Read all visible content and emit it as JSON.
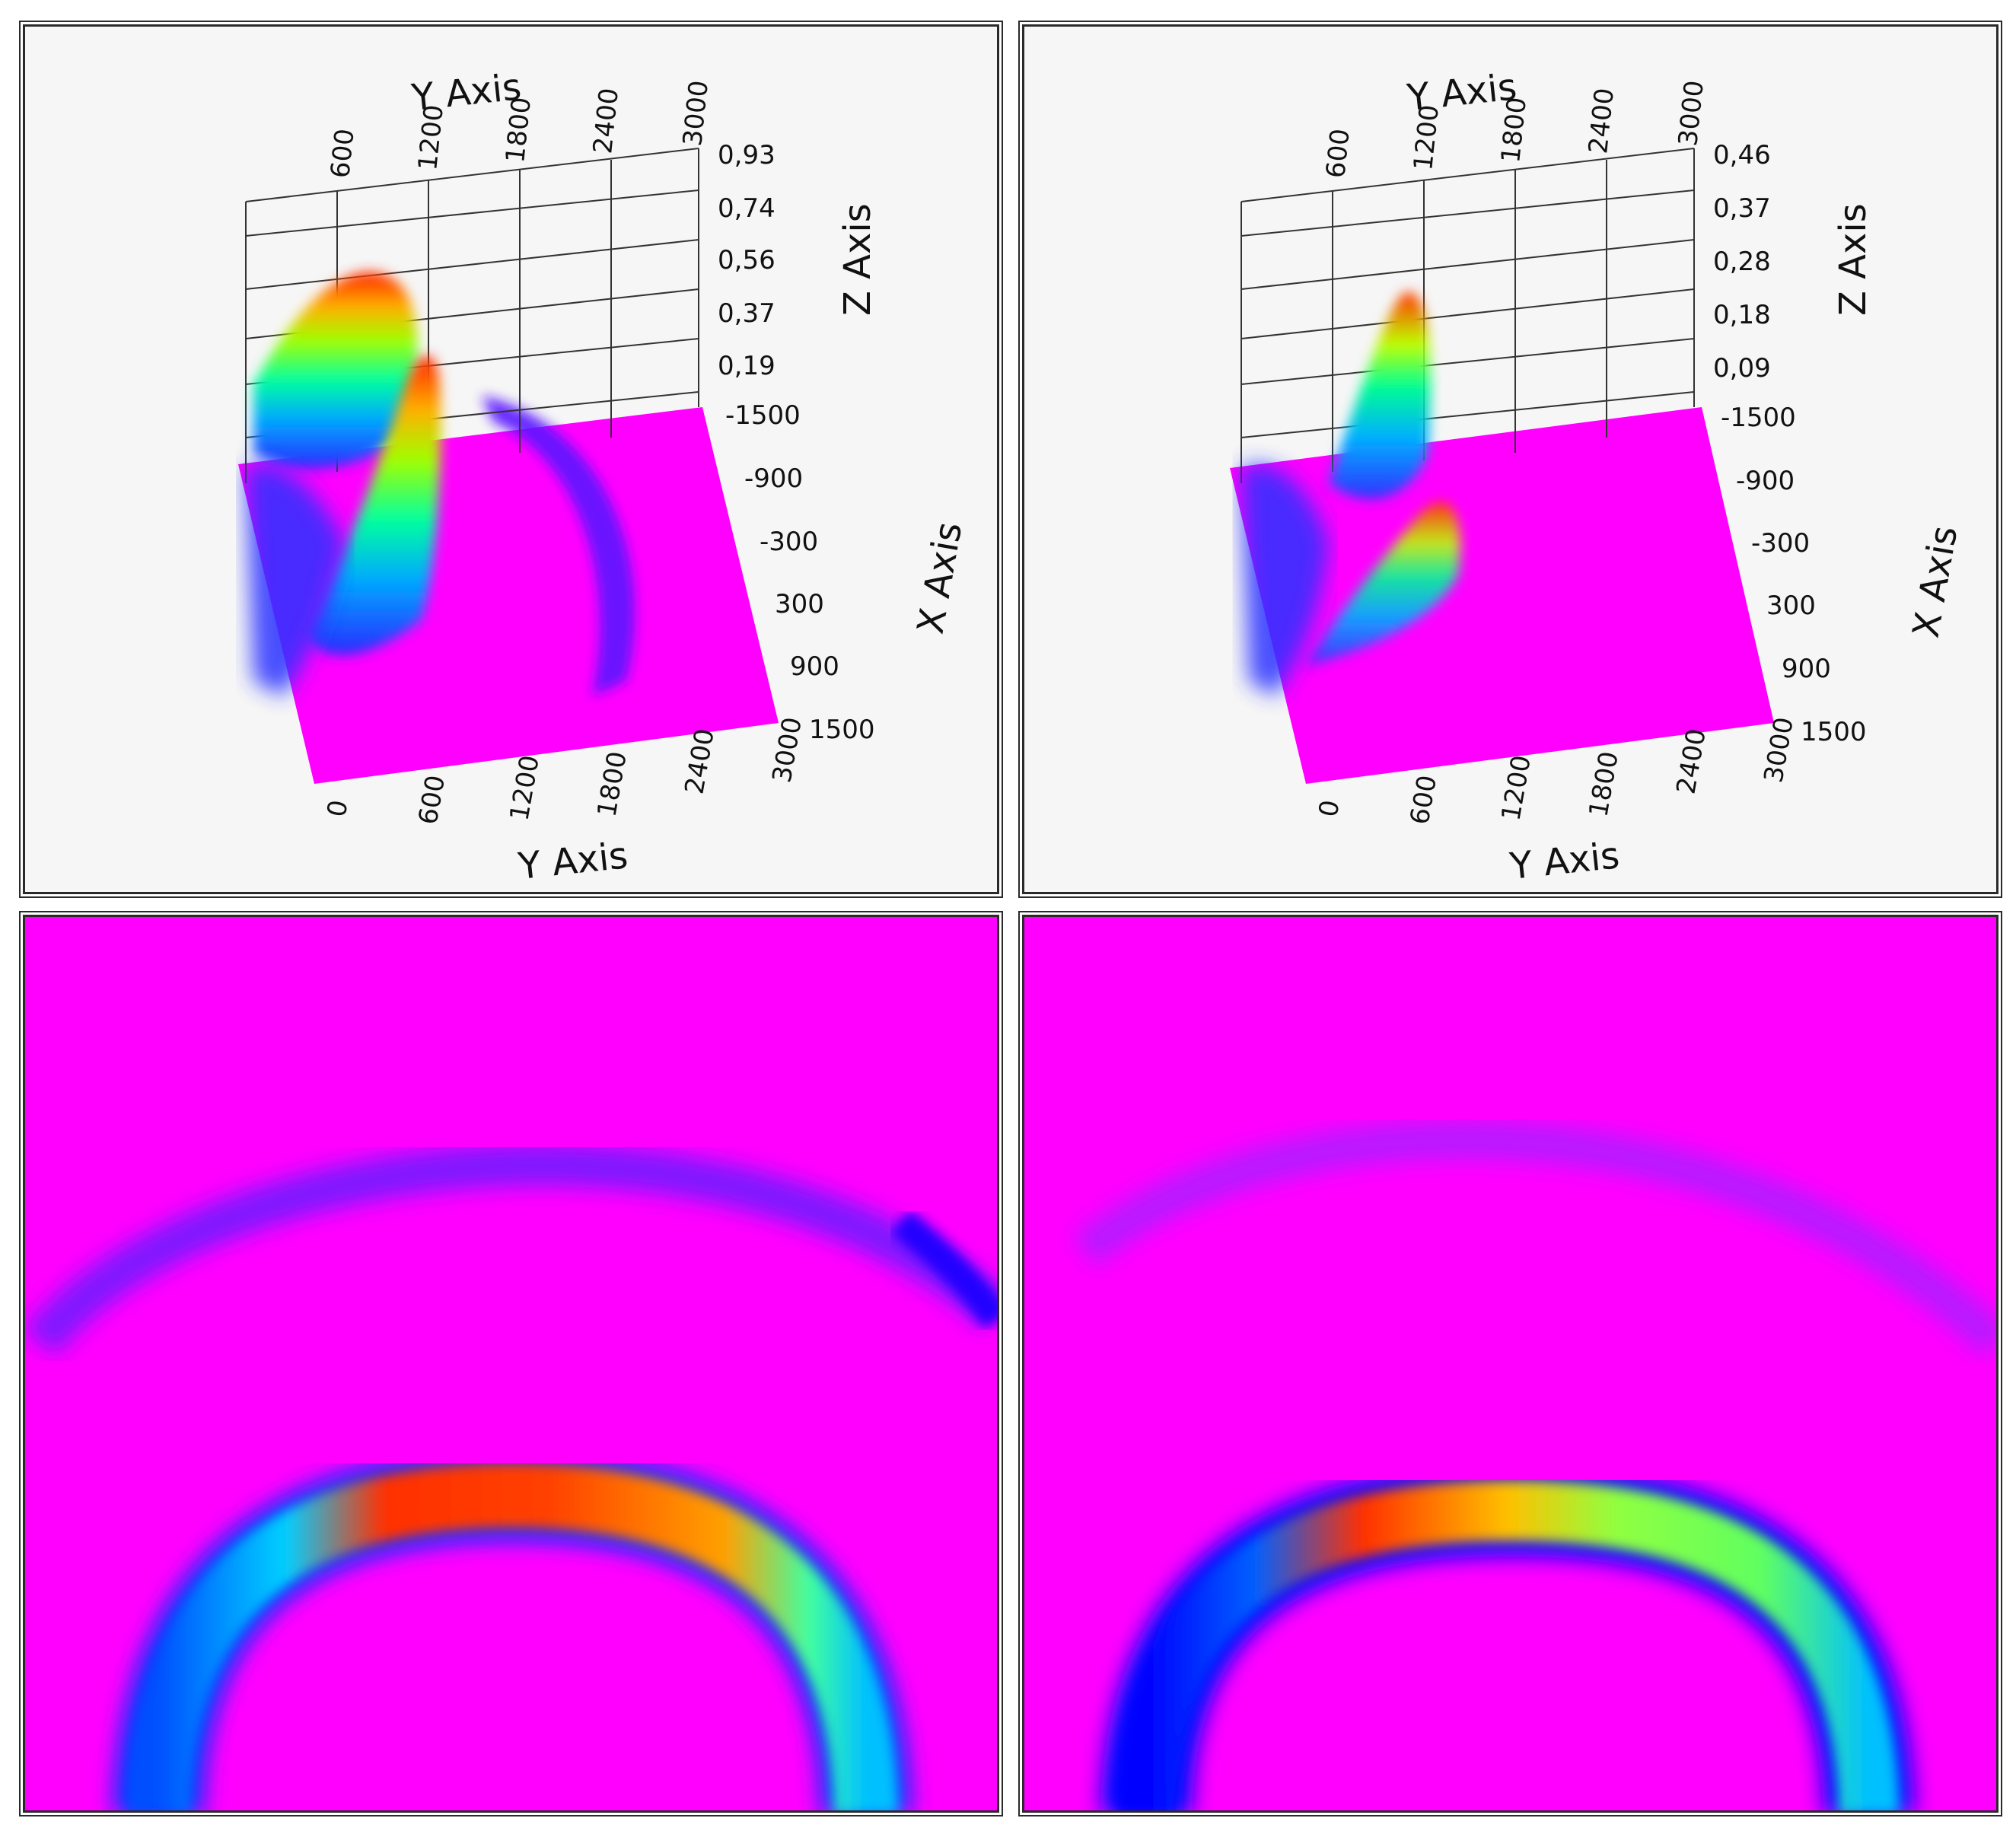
{
  "colors": {
    "background": "#ff00ff",
    "colormap": [
      "#ff00ff",
      "#3a00ff",
      "#0000ff",
      "#00b0ff",
      "#00ffb0",
      "#80ff00",
      "#ffc000",
      "#ff2000"
    ]
  },
  "panels": [
    {
      "kind": "surface-3d",
      "y_axis_top_title": "Y Axis",
      "y_axis_top_ticks": [
        "600",
        "1200",
        "1800",
        "2400",
        "3000"
      ],
      "z_axis_title": "Z Axis",
      "z_ticks": [
        "0,93",
        "0,74",
        "0,56",
        "0,37",
        "0,19"
      ],
      "x_axis_title": "X Axis",
      "x_ticks": [
        "-1500",
        "-900",
        "-300",
        "300",
        "900",
        "1500"
      ],
      "y_axis_bottom_title": "Y Axis",
      "y_axis_bottom_ticks": [
        "0",
        "600",
        "1200",
        "1800",
        "2400",
        "3000"
      ]
    },
    {
      "kind": "surface-3d",
      "y_axis_top_title": "Y Axis",
      "y_axis_top_ticks": [
        "600",
        "1200",
        "1800",
        "2400",
        "3000"
      ],
      "z_axis_title": "Z Axis",
      "z_ticks": [
        "0,46",
        "0,37",
        "0,28",
        "0,18",
        "0,09"
      ],
      "x_axis_title": "X Axis",
      "x_ticks": [
        "-1500",
        "-900",
        "-300",
        "300",
        "900",
        "1500"
      ],
      "y_axis_bottom_title": "Y Axis",
      "y_axis_bottom_ticks": [
        "0",
        "600",
        "1200",
        "1800",
        "2400",
        "3000"
      ]
    },
    {
      "kind": "heatmap-2d"
    },
    {
      "kind": "heatmap-2d"
    }
  ],
  "chart_data": [
    {
      "type": "heatmap",
      "view": "3d-surface",
      "z_range": [
        0,
        0.93
      ],
      "x_range": [
        -1500,
        1500
      ],
      "y_range": [
        0,
        3000
      ]
    },
    {
      "type": "heatmap",
      "view": "3d-surface",
      "z_range": [
        0,
        0.46
      ],
      "x_range": [
        -1500,
        1500
      ],
      "y_range": [
        0,
        3000
      ]
    },
    {
      "type": "heatmap",
      "view": "top-down"
    },
    {
      "type": "heatmap",
      "view": "top-down"
    }
  ]
}
